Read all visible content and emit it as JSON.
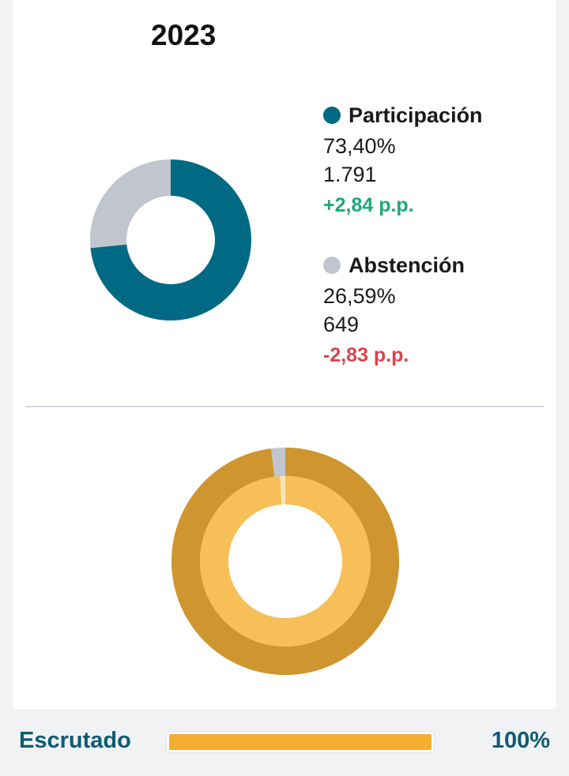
{
  "year": "2023",
  "colors": {
    "participation": "#006a84",
    "abstention": "#c1c5cd",
    "positive": "#1fa87a",
    "negative": "#d8454b",
    "progress": "#f5ae2f",
    "seats_outer": "#cf952e",
    "seats_inner": "#f7bf57"
  },
  "legend": [
    {
      "name": "Participación",
      "percent": "73,40%",
      "count": "1.791",
      "change": "+2,84 p.p.",
      "trend": "positive"
    },
    {
      "name": "Abstención",
      "percent": "26,59%",
      "count": "649",
      "change": "-2,83 p.p.",
      "trend": "negative"
    }
  ],
  "chart_data": [
    {
      "type": "pie",
      "style": "donut",
      "categories": [
        "Participación",
        "Abstención"
      ],
      "values": [
        73.4,
        26.59
      ],
      "colors": [
        "#006a84",
        "#c1c5cd"
      ]
    },
    {
      "type": "pie",
      "style": "concentric-donut",
      "series": [
        {
          "values": [
            98,
            2
          ],
          "colors": [
            "#cf952e",
            "#c1c5cd"
          ]
        },
        {
          "values": [
            99,
            1
          ],
          "colors": [
            "#f7bf57",
            "#fbe3b2"
          ]
        }
      ]
    }
  ],
  "footer": {
    "label": "Escrutado",
    "progress": 100,
    "progress_text": "100%"
  }
}
